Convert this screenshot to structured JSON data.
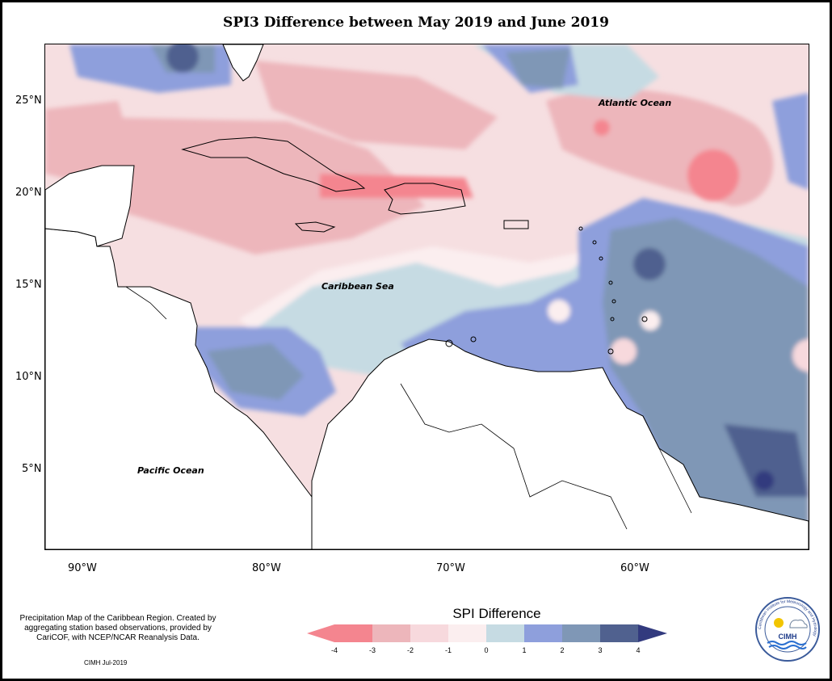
{
  "title": "SPI3 Difference between May 2019 and June 2019",
  "map": {
    "latitude_labels": [
      "25°N",
      "20°N",
      "15°N",
      "10°N",
      "5°N"
    ],
    "longitude_labels": [
      "90°W",
      "80°W",
      "70°W",
      "60°W"
    ],
    "place_labels": {
      "atlantic": "Atlantic Ocean",
      "caribbean": "Caribbean Sea",
      "pacific": "Pacific Ocean"
    }
  },
  "note": "Precipitation Map of the Caribbean Region. Created by aggregating station based observations, provided by CariCOF, with NCEP/NCAR Reanalysis Data.",
  "credit": "CIMH Jul-2019",
  "legend": {
    "title": "SPI Difference",
    "ticks": [
      "-4",
      "-3",
      "-2",
      "-1",
      "0",
      "1",
      "2",
      "3",
      "4"
    ],
    "colors": [
      "#f4858f",
      "#edb6bb",
      "#f7d9dd",
      "#fbeeef",
      "#c6dbe3",
      "#8e9fdc",
      "#7f97b6",
      "#50618f"
    ],
    "arrow_low": "#f4858f",
    "arrow_high": "#323a7e"
  },
  "logo": {
    "ring_text": "Caribbean Institute for Meteorology and Hydrology",
    "acronym": "CIMH"
  }
}
